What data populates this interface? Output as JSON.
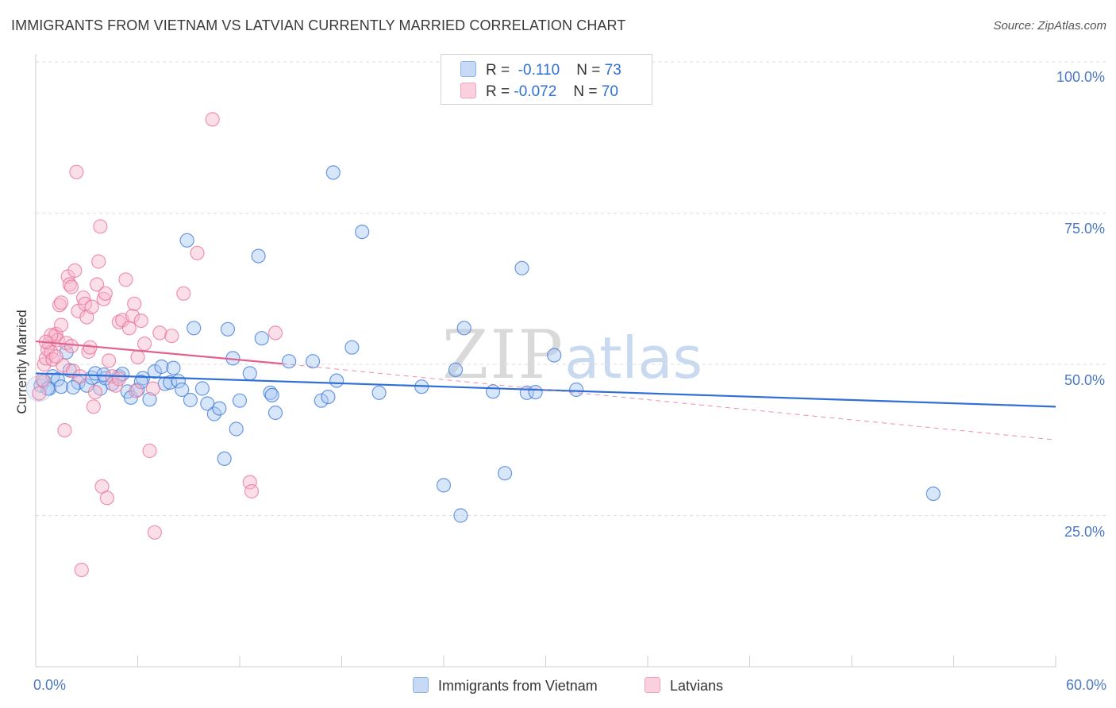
{
  "title": "IMMIGRANTS FROM VIETNAM VS LATVIAN CURRENTLY MARRIED CORRELATION CHART",
  "source": "Source: ZipAtlas.com",
  "watermark": {
    "zip": "ZIP",
    "atlas": "atlas"
  },
  "legend": {
    "rows": [
      {
        "r_label": "R =",
        "r_value": "-0.110",
        "n_label": "N =",
        "n_value": "73",
        "color": "#a9c7f2"
      },
      {
        "r_label": "R =",
        "r_value": "-0.072",
        "n_label": "N =",
        "n_value": "70",
        "color": "#f6b8cc"
      }
    ]
  },
  "chart_data": {
    "type": "scatter",
    "title": "IMMIGRANTS FROM VIETNAM VS LATVIAN CURRENTLY MARRIED CORRELATION CHART",
    "xlabel": "",
    "ylabel": "Currently Married",
    "xlim": [
      0,
      60
    ],
    "ylim": [
      0,
      105
    ],
    "x_tick_labels": [
      "0.0%",
      "60.0%"
    ],
    "y_tick_labels": [
      {
        "value": 100,
        "label": "100.0%"
      },
      {
        "value": 75,
        "label": "75.0%"
      },
      {
        "value": 50,
        "label": "50.0%"
      },
      {
        "value": 25,
        "label": "25.0%"
      }
    ],
    "grid": "horizontal dashed",
    "legend_position": "bottom",
    "series": [
      {
        "name": "Immigrants from Vietnam",
        "color": "#3c78d8",
        "fill": "#a9c7f2",
        "trend": {
          "x": [
            0,
            60
          ],
          "y": [
            48.5,
            43.0
          ],
          "style": "solid"
        },
        "points": [
          [
            0.3,
            46.5
          ],
          [
            0.5,
            47.2
          ],
          [
            0.8,
            46.0
          ],
          [
            1.0,
            48.0
          ],
          [
            1.3,
            47.5
          ],
          [
            1.5,
            46.3
          ],
          [
            1.8,
            52.0
          ],
          [
            2.0,
            49.0
          ],
          [
            2.5,
            47.0
          ],
          [
            3.0,
            46.5
          ],
          [
            3.3,
            47.8
          ],
          [
            3.5,
            48.5
          ],
          [
            3.8,
            46.0
          ],
          [
            4.1,
            47.7
          ],
          [
            4.5,
            46.8
          ],
          [
            4.9,
            48.0
          ],
          [
            5.1,
            48.4
          ],
          [
            5.4,
            45.5
          ],
          [
            5.6,
            44.5
          ],
          [
            6.0,
            45.8
          ],
          [
            6.3,
            47.7
          ],
          [
            6.7,
            44.2
          ],
          [
            7.0,
            48.8
          ],
          [
            7.4,
            49.6
          ],
          [
            7.6,
            46.8
          ],
          [
            7.9,
            47.0
          ],
          [
            8.1,
            49.4
          ],
          [
            8.4,
            47.2
          ],
          [
            8.6,
            45.8
          ],
          [
            8.9,
            70.5
          ],
          [
            9.1,
            44.1
          ],
          [
            9.3,
            56.0
          ],
          [
            9.8,
            46.0
          ],
          [
            10.1,
            43.5
          ],
          [
            10.5,
            41.8
          ],
          [
            10.8,
            42.7
          ],
          [
            11.1,
            34.4
          ],
          [
            11.3,
            55.8
          ],
          [
            11.6,
            51.0
          ],
          [
            11.8,
            39.3
          ],
          [
            12.0,
            44.0
          ],
          [
            12.6,
            48.5
          ],
          [
            13.1,
            67.9
          ],
          [
            13.3,
            54.3
          ],
          [
            13.8,
            45.3
          ],
          [
            13.9,
            44.9
          ],
          [
            14.1,
            42.0
          ],
          [
            14.9,
            50.5
          ],
          [
            16.3,
            50.5
          ],
          [
            16.8,
            44.0
          ],
          [
            17.2,
            44.6
          ],
          [
            17.5,
            81.7
          ],
          [
            17.7,
            47.3
          ],
          [
            18.6,
            52.8
          ],
          [
            19.2,
            71.9
          ],
          [
            20.2,
            45.3
          ],
          [
            22.7,
            46.3
          ],
          [
            24.0,
            30.0
          ],
          [
            24.7,
            49.1
          ],
          [
            25.0,
            25.0
          ],
          [
            25.2,
            56.0
          ],
          [
            26.9,
            45.5
          ],
          [
            27.6,
            32.0
          ],
          [
            28.6,
            65.9
          ],
          [
            28.9,
            45.3
          ],
          [
            29.4,
            45.4
          ],
          [
            30.5,
            51.5
          ],
          [
            31.8,
            45.8
          ],
          [
            52.8,
            28.6
          ],
          [
            0.7,
            46.0
          ],
          [
            2.2,
            46.2
          ],
          [
            4.0,
            48.3
          ],
          [
            6.2,
            47.1
          ]
        ]
      },
      {
        "name": "Latvians",
        "color": "#e8729a",
        "fill": "#f6b8cc",
        "trend": {
          "x": [
            0,
            14.5
          ],
          "y": [
            53.8,
            50.1
          ],
          "style": "solid",
          "extended": {
            "x": [
              14.5,
              60
            ],
            "y": [
              50.1,
              37.5
            ],
            "style": "dashed"
          }
        },
        "points": [
          [
            0.2,
            45.2
          ],
          [
            0.4,
            47.4
          ],
          [
            0.5,
            50.0
          ],
          [
            0.6,
            51.0
          ],
          [
            0.7,
            52.4
          ],
          [
            0.8,
            53.5
          ],
          [
            0.9,
            52.0
          ],
          [
            1.0,
            50.8
          ],
          [
            1.1,
            54.6
          ],
          [
            1.2,
            55.0
          ],
          [
            1.3,
            54.0
          ],
          [
            1.4,
            59.8
          ],
          [
            1.5,
            60.2
          ],
          [
            1.6,
            49.8
          ],
          [
            1.7,
            39.1
          ],
          [
            1.8,
            53.5
          ],
          [
            1.9,
            64.5
          ],
          [
            2.0,
            63.2
          ],
          [
            2.1,
            62.8
          ],
          [
            2.2,
            48.9
          ],
          [
            2.3,
            65.5
          ],
          [
            2.4,
            81.8
          ],
          [
            2.5,
            58.8
          ],
          [
            2.6,
            48.0
          ],
          [
            2.7,
            16.0
          ],
          [
            2.8,
            61.0
          ],
          [
            2.9,
            60.0
          ],
          [
            3.0,
            57.8
          ],
          [
            3.1,
            52.1
          ],
          [
            3.2,
            52.8
          ],
          [
            3.3,
            59.5
          ],
          [
            3.4,
            43.0
          ],
          [
            3.5,
            45.4
          ],
          [
            3.6,
            63.2
          ],
          [
            3.7,
            67.0
          ],
          [
            3.8,
            72.8
          ],
          [
            3.9,
            29.8
          ],
          [
            4.0,
            60.8
          ],
          [
            4.1,
            61.7
          ],
          [
            4.2,
            27.9
          ],
          [
            4.3,
            50.6
          ],
          [
            4.5,
            48.0
          ],
          [
            4.7,
            46.5
          ],
          [
            4.9,
            57.0
          ],
          [
            5.1,
            57.3
          ],
          [
            5.3,
            64.0
          ],
          [
            5.5,
            56.0
          ],
          [
            5.7,
            58.0
          ],
          [
            5.8,
            60.0
          ],
          [
            6.0,
            51.2
          ],
          [
            6.2,
            57.2
          ],
          [
            6.4,
            53.4
          ],
          [
            6.7,
            35.7
          ],
          [
            6.9,
            46.0
          ],
          [
            7.3,
            55.2
          ],
          [
            8.0,
            54.7
          ],
          [
            8.7,
            61.7
          ],
          [
            9.5,
            68.4
          ],
          [
            10.4,
            90.5
          ],
          [
            12.6,
            30.5
          ],
          [
            12.7,
            29.0
          ],
          [
            14.1,
            55.2
          ],
          [
            7.0,
            22.2
          ],
          [
            2.1,
            53.0
          ],
          [
            1.2,
            51.3
          ],
          [
            0.9,
            54.8
          ],
          [
            4.9,
            47.6
          ],
          [
            5.9,
            45.6
          ],
          [
            1.5,
            56.5
          ],
          [
            0.6,
            53.7
          ]
        ]
      }
    ]
  }
}
